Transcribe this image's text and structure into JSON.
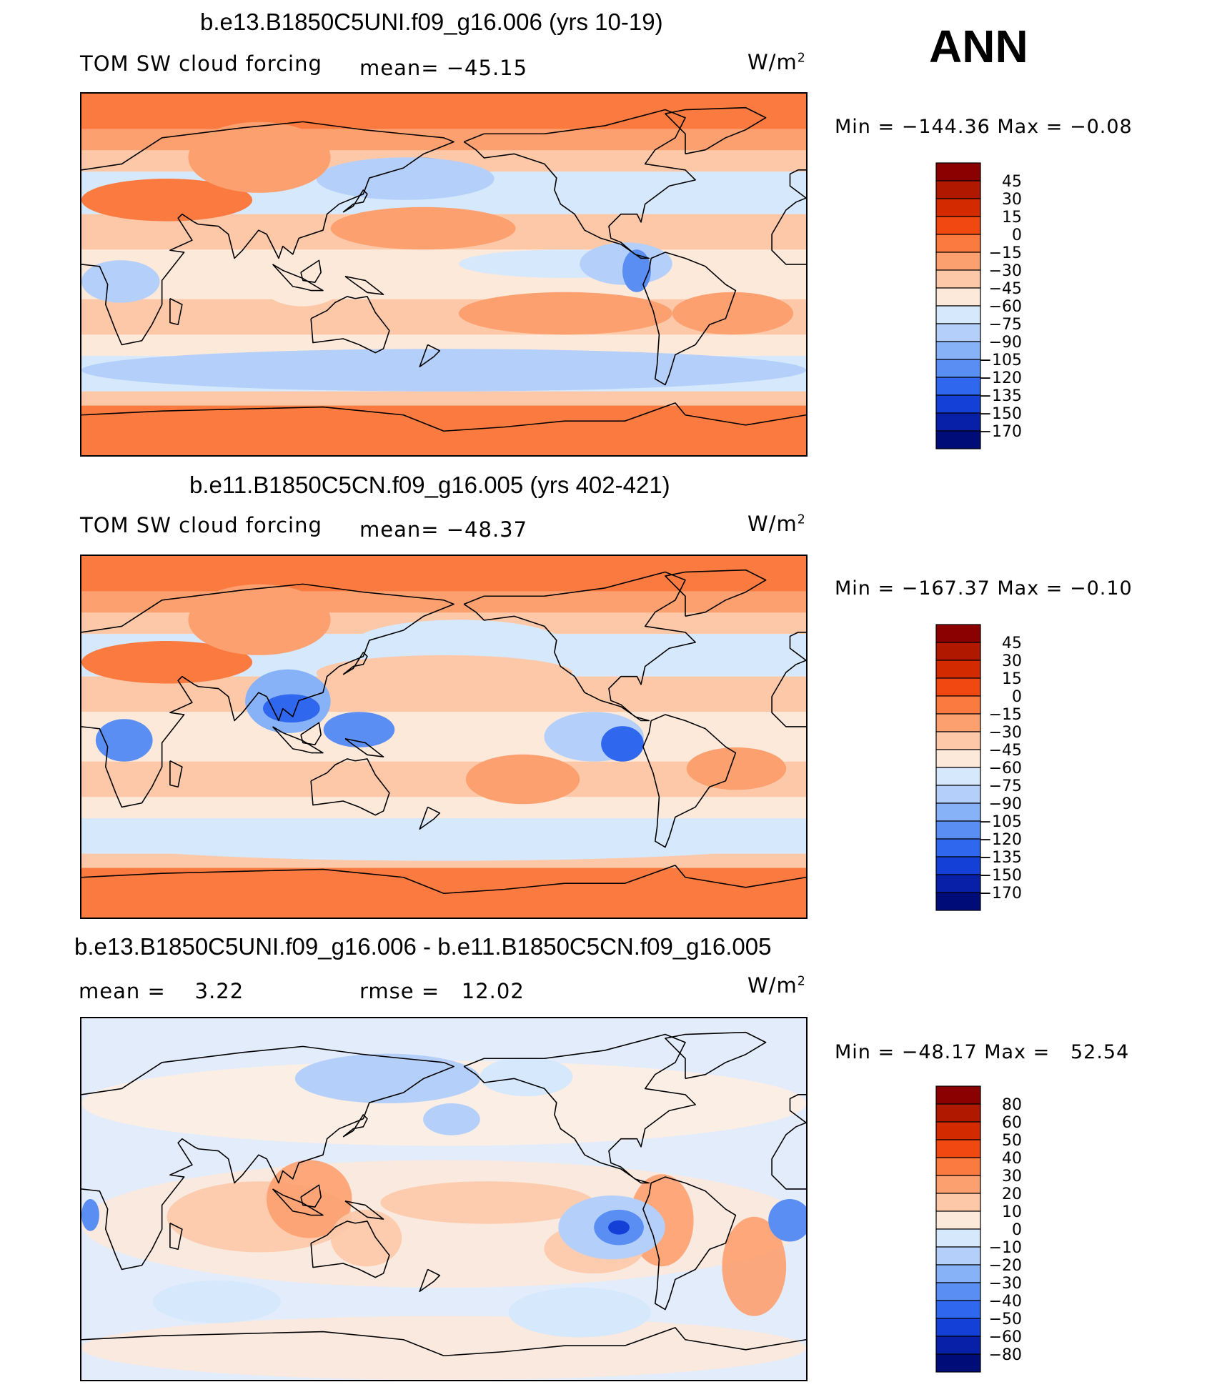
{
  "season": "ANN",
  "units_base": "W/m",
  "units_exp": "2",
  "panels": [
    {
      "title": "b.e13.B1850C5UNI.f09_g16.006 (yrs 10-19)",
      "left_label": "TOM SW cloud forcing",
      "mid_label": "mean= −45.15",
      "minmax": "Min = −144.36 Max =  −0.08"
    },
    {
      "title": "b.e11.B1850C5CN.f09_g16.005 (yrs 402-421)",
      "left_label": "TOM SW cloud forcing",
      "mid_label": "mean= −48.37",
      "minmax": "Min = −167.37 Max =  −0.10"
    },
    {
      "title": "b.e13.B1850C5UNI.f09_g16.006 - b.e11.B1850C5CN.f09_g16.005",
      "left_label": "mean =    3.22",
      "mid_label": "rmse =   12.02",
      "minmax": "Min = −48.17 Max =   52.54"
    }
  ],
  "chart_data": [
    {
      "type": "heatmap",
      "title": "b.e13.B1850C5UNI.f09_g16.006 (yrs 10-19)",
      "variable": "TOM SW cloud forcing",
      "units": "W/m2",
      "mean": -45.15,
      "min": -144.36,
      "max": -0.08,
      "colorbar_levels": [
        "45",
        "30",
        "15",
        "0",
        "−15",
        "−30",
        "−45",
        "−60",
        "−75",
        "−90",
        "−105",
        "−120",
        "−135",
        "−150",
        "−170"
      ],
      "colorbar_colors": [
        "#8b0000",
        "#b01800",
        "#d42a00",
        "#f04810",
        "#fb7a40",
        "#fda070",
        "#fdc8a8",
        "#fde9da",
        "#d6e8fb",
        "#b4d0fa",
        "#88b2f8",
        "#5a8ef3",
        "#2f68ee",
        "#1440d8",
        "#0820a8",
        "#000c78"
      ]
    },
    {
      "type": "heatmap",
      "title": "b.e11.B1850C5CN.f09_g16.005 (yrs 402-421)",
      "variable": "TOM SW cloud forcing",
      "units": "W/m2",
      "mean": -48.37,
      "min": -167.37,
      "max": -0.1,
      "colorbar_levels": [
        "45",
        "30",
        "15",
        "0",
        "−15",
        "−30",
        "−45",
        "−60",
        "−75",
        "−90",
        "−105",
        "−120",
        "−135",
        "−150",
        "−170"
      ],
      "colorbar_colors": [
        "#8b0000",
        "#b01800",
        "#d42a00",
        "#f04810",
        "#fb7a40",
        "#fda070",
        "#fdc8a8",
        "#fde9da",
        "#d6e8fb",
        "#b4d0fa",
        "#88b2f8",
        "#5a8ef3",
        "#2f68ee",
        "#1440d8",
        "#0820a8",
        "#000c78"
      ]
    },
    {
      "type": "heatmap",
      "title": "b.e13.B1850C5UNI.f09_g16.006 - b.e11.B1850C5CN.f09_g16.005",
      "units": "W/m2",
      "mean": 3.22,
      "rmse": 12.02,
      "min": -48.17,
      "max": 52.54,
      "colorbar_levels": [
        "80",
        "60",
        "50",
        "40",
        "30",
        "20",
        "10",
        "0",
        "−10",
        "−20",
        "−30",
        "−40",
        "−50",
        "−60",
        "−80"
      ],
      "colorbar_colors": [
        "#8b0000",
        "#b01800",
        "#d42a00",
        "#f04810",
        "#fb7a40",
        "#fda070",
        "#fdc8a8",
        "#fde9da",
        "#d6e8fb",
        "#b4d0fa",
        "#88b2f8",
        "#5a8ef3",
        "#2f68ee",
        "#1440d8",
        "#0820a8",
        "#000c78"
      ]
    }
  ]
}
